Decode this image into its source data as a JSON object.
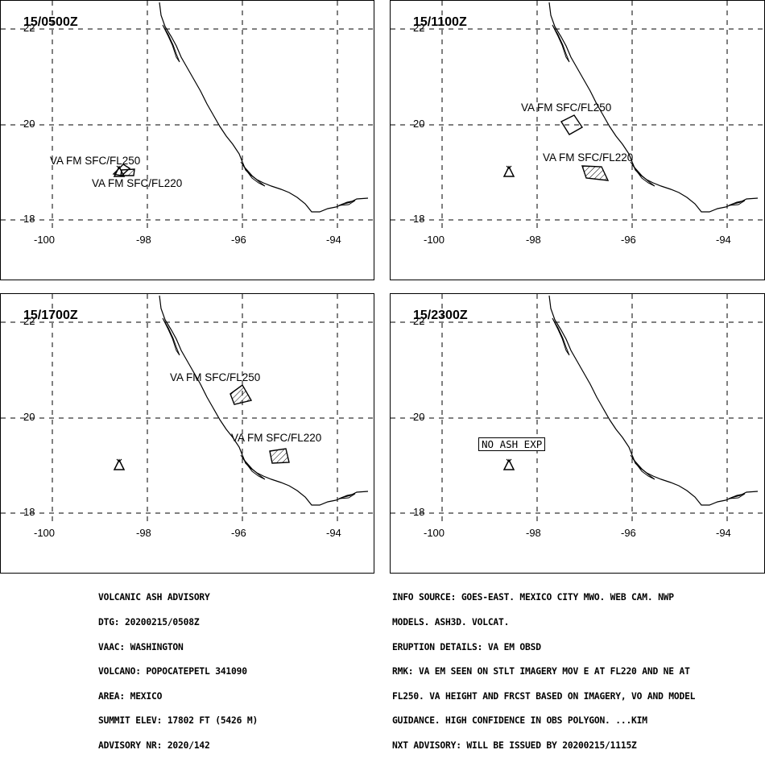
{
  "panels": [
    {
      "time": "15/0500Z",
      "labels": [
        "VA FM SFC/FL250",
        "VA FM SFC/FL220"
      ],
      "no_ash": ""
    },
    {
      "time": "15/1100Z",
      "labels": [
        "VA FM SFC/FL250",
        "VA FM SFC/FL220"
      ],
      "no_ash": ""
    },
    {
      "time": "15/1700Z",
      "labels": [
        "VA FM SFC/FL250",
        "VA FM SFC/FL220"
      ],
      "no_ash": ""
    },
    {
      "time": "15/2300Z",
      "labels": [],
      "no_ash": "NO ASH EXP"
    }
  ],
  "axes": {
    "lat_ticks": [
      "22",
      "20",
      "18"
    ],
    "lon_ticks": [
      "-100",
      "-98",
      "-96",
      "-94"
    ]
  },
  "advisory_left": [
    "VOLCANIC ASH ADVISORY",
    "DTG: 20200215/0508Z",
    "VAAC: WASHINGTON",
    "VOLCANO: POPOCATEPETL 341090",
    "AREA: MEXICO",
    "SUMMIT ELEV: 17802 FT (5426 M)",
    "ADVISORY NR: 2020/142"
  ],
  "advisory_right": [
    "INFO SOURCE: GOES-EAST. MEXICO CITY MWO. WEB CAM. NWP",
    "MODELS. ASH3D. VOLCAT.",
    "ERUPTION DETAILS: VA EM OBSD",
    "RMK: VA EM SEEN ON STLT IMAGERY MOV E AT FL220 AND NE AT",
    "FL250. VA HEIGHT AND FRCST BASED ON IMAGERY, VO AND MODEL",
    "GUIDANCE. HIGH CONFIDENCE IN OBS POLYGON. ...KIM",
    "NXT ADVISORY: WILL BE ISSUED BY 20200215/1115Z"
  ]
}
